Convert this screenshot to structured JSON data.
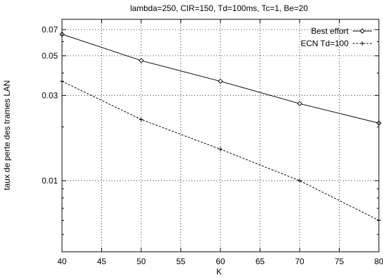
{
  "chart_data": {
    "type": "line",
    "title": "lambda=250, CIR=150, Td=100ms, Tc=1, Be=20",
    "xlabel": "K",
    "ylabel": "taux de perte des trames LAN",
    "xlim": [
      40,
      80
    ],
    "ylim": [
      0.004,
      0.08
    ],
    "yscale": "log",
    "grid": true,
    "legend_position": "top-right",
    "xticks": [
      40,
      45,
      50,
      55,
      60,
      65,
      70,
      75,
      80
    ],
    "yticks": [
      0.01,
      0.03,
      0.05,
      0.07
    ],
    "x": [
      40,
      50,
      60,
      70,
      80
    ],
    "series": [
      {
        "name": "Best effort",
        "style": "solid",
        "marker": "diamond",
        "color": "#000000",
        "values": [
          0.066,
          0.047,
          0.036,
          0.027,
          0.021
        ]
      },
      {
        "name": "ECN Td=100",
        "style": "dashed",
        "marker": "plus",
        "color": "#000000",
        "values": [
          0.036,
          0.022,
          0.015,
          0.01,
          0.006
        ]
      }
    ]
  }
}
